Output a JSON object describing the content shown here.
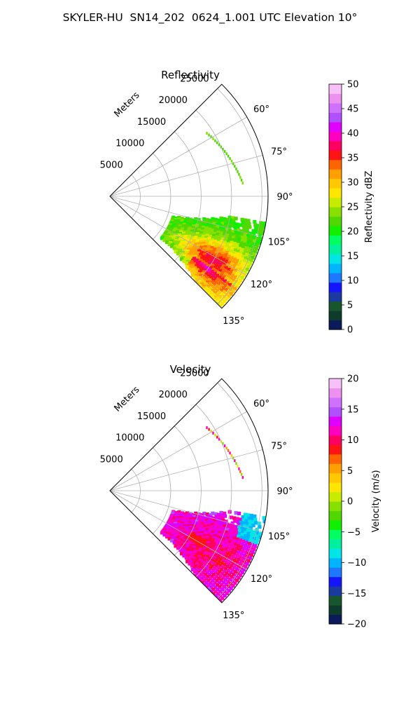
{
  "figure": {
    "suptitle": "SKYLER-HU  SN14_202  0624_1.001 UTC Elevation 10°"
  },
  "chart_data": [
    {
      "type": "polar-sector",
      "title": "Reflectivity",
      "rlabel": "Meters",
      "r_ticks": [
        5000,
        10000,
        15000,
        20000,
        25000
      ],
      "rlim": [
        0,
        26000
      ],
      "theta_ticks": [
        "60°",
        "75°",
        "90°",
        "105°",
        "120°",
        "135°"
      ],
      "theta_range_deg": [
        45,
        135
      ],
      "grid": true,
      "colorbar": {
        "label": "Reflectivity dBZ",
        "range": [
          0,
          50
        ],
        "ticks": [
          "0",
          "5",
          "10",
          "15",
          "20",
          "25",
          "30",
          "35",
          "40",
          "45",
          "50"
        ],
        "colors": [
          "#0a1a5a",
          "#0d3b2c",
          "#18572e",
          "#1a3aa0",
          "#1414ff",
          "#1e78ff",
          "#00b4ff",
          "#00e6e6",
          "#00f0a0",
          "#00ff60",
          "#10f000",
          "#50d800",
          "#88e000",
          "#c8ec00",
          "#ffe600",
          "#ffc800",
          "#ffa000",
          "#ff6400",
          "#ff1414",
          "#ff0060",
          "#ff00c0",
          "#e000ff",
          "#b050ff",
          "#d070ff",
          "#ee90f0",
          "#f8c0f8"
        ]
      }
    },
    {
      "type": "polar-sector",
      "title": "Velocity",
      "rlabel": "Meters",
      "r_ticks": [
        5000,
        10000,
        15000,
        20000,
        25000
      ],
      "rlim": [
        0,
        26000
      ],
      "theta_ticks": [
        "60°",
        "75°",
        "90°",
        "105°",
        "120°",
        "135°"
      ],
      "theta_range_deg": [
        45,
        135
      ],
      "grid": true,
      "colorbar": {
        "label": "Velocity (m/s)",
        "range": [
          -20,
          20
        ],
        "ticks": [
          "−20",
          "−15",
          "−10",
          "−5",
          "0",
          "5",
          "10",
          "15",
          "20"
        ],
        "colors": [
          "#0a1a5a",
          "#0d3b2c",
          "#18572e",
          "#1a3aa0",
          "#1414ff",
          "#1e78ff",
          "#00b4ff",
          "#00e6e6",
          "#00f0a0",
          "#00ff60",
          "#10f000",
          "#50d800",
          "#88e000",
          "#c8ec00",
          "#ffe600",
          "#ffc800",
          "#ffa000",
          "#ff6400",
          "#ff1414",
          "#ff0060",
          "#ff00c0",
          "#e000ff",
          "#b050ff",
          "#d070ff",
          "#ee90f0",
          "#f8c0f8"
        ]
      }
    }
  ]
}
